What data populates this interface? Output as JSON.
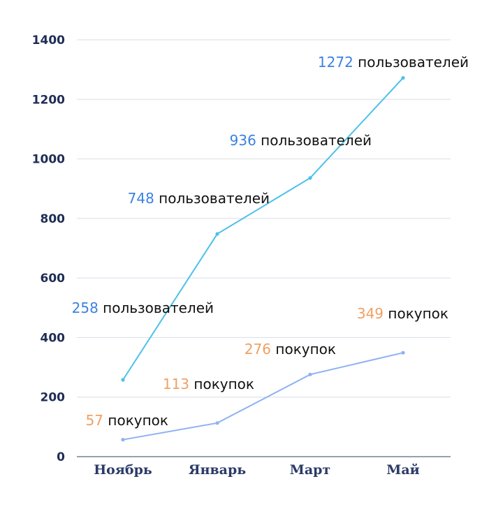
{
  "chart_data": {
    "type": "line",
    "categories": [
      "Ноябрь",
      "Январь",
      "Март",
      "Май"
    ],
    "ylim": [
      0,
      1400
    ],
    "yticks": [
      0,
      200,
      400,
      600,
      800,
      1000,
      1200,
      1400
    ],
    "grid": true,
    "series": [
      {
        "values": [
          258,
          748,
          936,
          1272
        ],
        "color": "#4cc1ea",
        "label_color": "#3b82e0",
        "label_suffix": "пользователей"
      },
      {
        "values": [
          57,
          113,
          276,
          349
        ],
        "color": "#8fb1f2",
        "label_color": "#f0a063",
        "label_suffix": "покупок"
      }
    ]
  }
}
